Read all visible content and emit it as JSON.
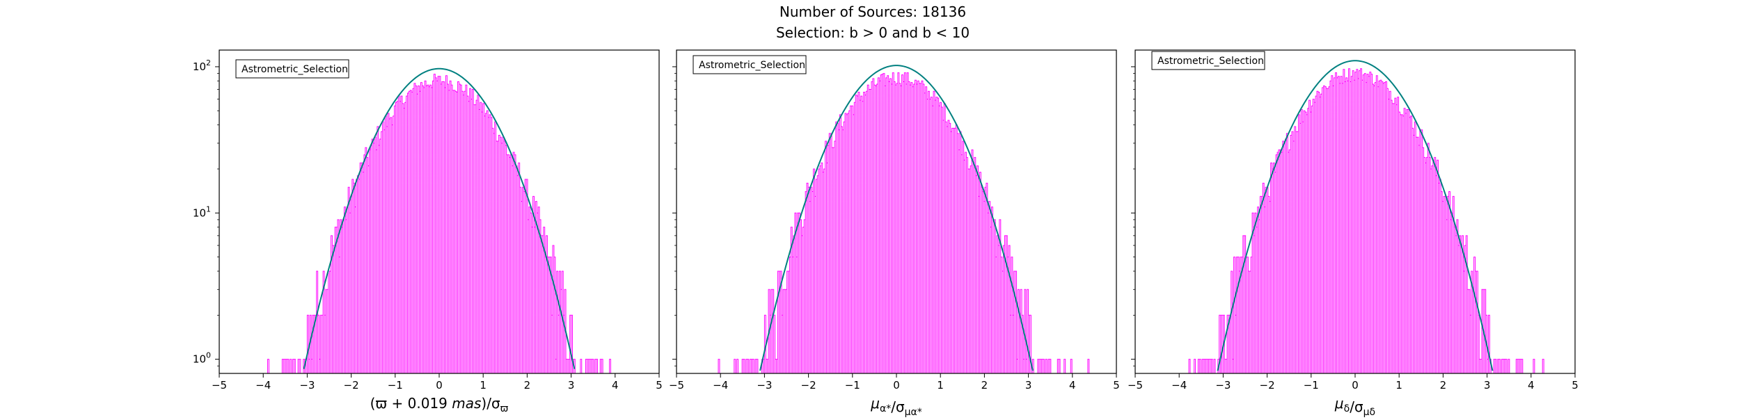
{
  "figure": {
    "title_line1": "Number of Sources: 18136",
    "title_line2": "Selection: b > 0 and b < 10"
  },
  "colors": {
    "histogram": "#ff00ff",
    "fit": "#008080"
  },
  "chart_data": [
    {
      "type": "histogram",
      "xlabel": "(ϖ + 0.019 mas)/σ_ϖ",
      "x_range": [
        -5,
        5
      ],
      "y_scale": "log",
      "y_range": [
        0.8,
        130
      ],
      "x_ticks": [
        "−5",
        "−4",
        "−3",
        "−2",
        "−1",
        "0",
        "1",
        "2",
        "3",
        "4",
        "5"
      ],
      "y_ticks": [
        "10^0",
        "10^1",
        "10^2"
      ],
      "legend": {
        "label": "Astrometric_Selection",
        "position": "upper-left"
      },
      "fit_peak": 97,
      "fit_sigma": 1.0,
      "hist_peak": 80,
      "hist_range": [
        -4.5,
        4.5
      ]
    },
    {
      "type": "histogram",
      "xlabel": "μ_α*/σ_μα*",
      "x_range": [
        -5,
        5
      ],
      "y_scale": "log",
      "y_range": [
        0.8,
        130
      ],
      "x_ticks": [
        "−5",
        "−4",
        "−3",
        "−2",
        "−1",
        "0",
        "1",
        "2",
        "3",
        "4",
        "5"
      ],
      "y_ticks": [
        "10^0",
        "10^1",
        "10^2"
      ],
      "legend": {
        "label": "Astrometric_Selection",
        "position": "upper-left"
      },
      "fit_peak": 102,
      "fit_sigma": 1.0,
      "hist_peak": 84,
      "hist_range": [
        -4.5,
        4.5
      ]
    },
    {
      "type": "histogram",
      "xlabel": "μ_δ/σ_μδ",
      "x_range": [
        -5,
        5
      ],
      "y_scale": "log",
      "y_range": [
        0.8,
        130
      ],
      "x_ticks": [
        "−5",
        "−4",
        "−3",
        "−2",
        "−1",
        "0",
        "1",
        "2",
        "3",
        "4",
        "5"
      ],
      "y_ticks": [
        "10^0",
        "10^1",
        "10^2"
      ],
      "legend": {
        "label": "Astrometric_Selection",
        "position": "upper-left"
      },
      "fit_peak": 110,
      "fit_sigma": 1.0,
      "hist_peak": 90,
      "hist_range": [
        -4.5,
        4.5
      ]
    }
  ]
}
